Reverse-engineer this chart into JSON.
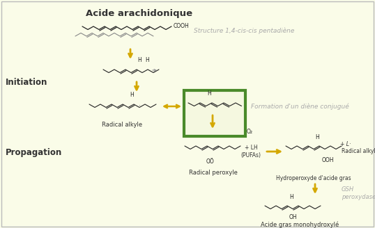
{
  "bg_color": "#FAFCE8",
  "border_color": "#BBBBBB",
  "title": "Acide arachidonique",
  "label_initiation": "Initiation",
  "label_propagation": "Propagation",
  "text_structure": "Structure 1,4-cis-cis pentadiène",
  "text_diene": "Formation d'un diène conjugué",
  "text_radical_alkyle_left": "Radical alkyle",
  "text_radical_peroxyle": "Radical peroxyle",
  "text_hydroperoxyde": "Hydroperoxyde d'acide gras",
  "text_acide_gras": "Acide gras monohydroxylé",
  "text_gsh": "GSH\nperoxydase",
  "text_color_gray": "#AAAAAA",
  "text_color_dark": "#333333",
  "green_box_color": "#4a8a2a",
  "yellow_arrow_color": "#D4A800",
  "chain_color": "#222222",
  "chain_lw": 0.8
}
